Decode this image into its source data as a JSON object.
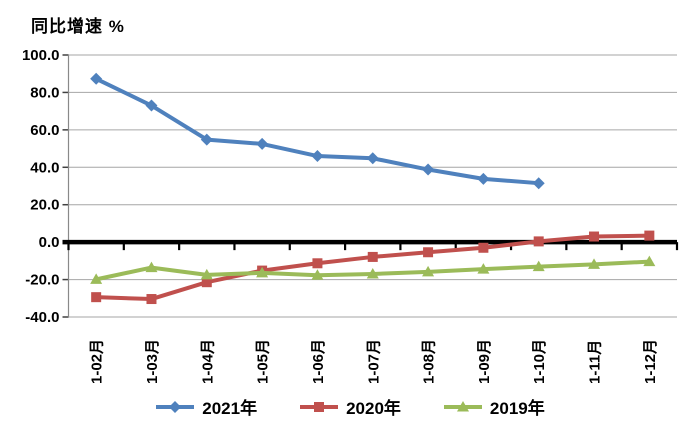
{
  "title": "同比增速 %",
  "chart_data": {
    "type": "line",
    "title": "同比增速 %",
    "categories": [
      "1-02月",
      "1-03月",
      "1-04月",
      "1-05月",
      "1-06月",
      "1-07月",
      "1-08月",
      "1-09月",
      "1-10月",
      "1-11月",
      "1-12月"
    ],
    "series": [
      {
        "name": "2021年",
        "color": "#4F81BD",
        "marker": "diamond",
        "values": [
          87.3,
          73.0,
          54.8,
          52.5,
          46.0,
          44.8,
          38.8,
          33.8,
          31.5,
          null,
          null
        ]
      },
      {
        "name": "2020年",
        "color": "#C0504D",
        "marker": "square",
        "values": [
          -29.4,
          -30.4,
          -21.4,
          -15.2,
          -11.3,
          -7.9,
          -5.4,
          -3.0,
          0.4,
          3.0,
          3.5
        ]
      },
      {
        "name": "2019年",
        "color": "#9BBB59",
        "marker": "triangle",
        "values": [
          -19.9,
          -13.6,
          -17.5,
          -16.4,
          -17.7,
          -17.0,
          -15.9,
          -14.4,
          -13.1,
          -11.9,
          -10.4
        ]
      }
    ],
    "ylim": [
      -40,
      100
    ],
    "ytick_step": 20,
    "ytick_labels": [
      "100.0",
      "80.0",
      "60.0",
      "40.0",
      "20.0",
      "0.0",
      "-20.0",
      "-40.0"
    ],
    "grid": true,
    "legend_position": "bottom",
    "axis_color": "#000000",
    "gridline_color": "#a6a6a6",
    "axis_line_color": "#898989"
  }
}
